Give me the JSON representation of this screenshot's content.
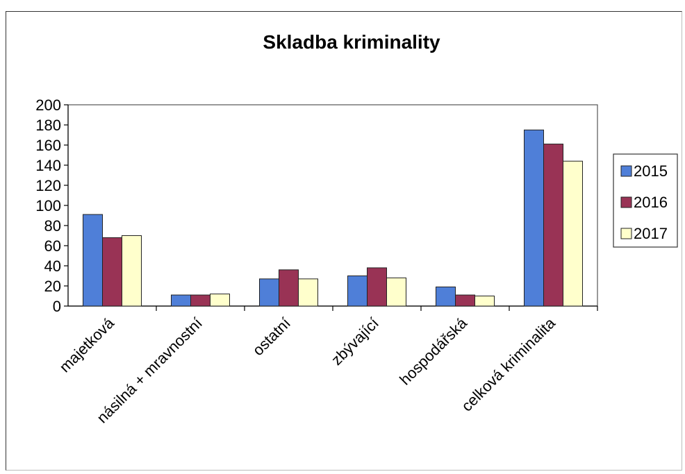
{
  "chart_data": {
    "type": "bar",
    "title": "Skladba kriminality",
    "xlabel": "",
    "ylabel": "",
    "categories": [
      "majetková",
      "násilná + mravnostní",
      "ostatní",
      "zbývající",
      "hospodářská",
      "celková kriminalita"
    ],
    "series": [
      {
        "name": "2015",
        "color": "#4f7fd8",
        "values": [
          91,
          11,
          27,
          30,
          19,
          175
        ]
      },
      {
        "name": "2016",
        "color": "#993355",
        "values": [
          68,
          11,
          36,
          38,
          11,
          161
        ]
      },
      {
        "name": "2017",
        "color": "#ffffcc",
        "values": [
          70,
          12,
          27,
          28,
          10,
          144
        ]
      }
    ],
    "ylim": [
      0,
      200
    ],
    "yticks": [
      0,
      20,
      40,
      60,
      80,
      100,
      120,
      140,
      160,
      180,
      200
    ],
    "grid": false,
    "legend": "right"
  }
}
